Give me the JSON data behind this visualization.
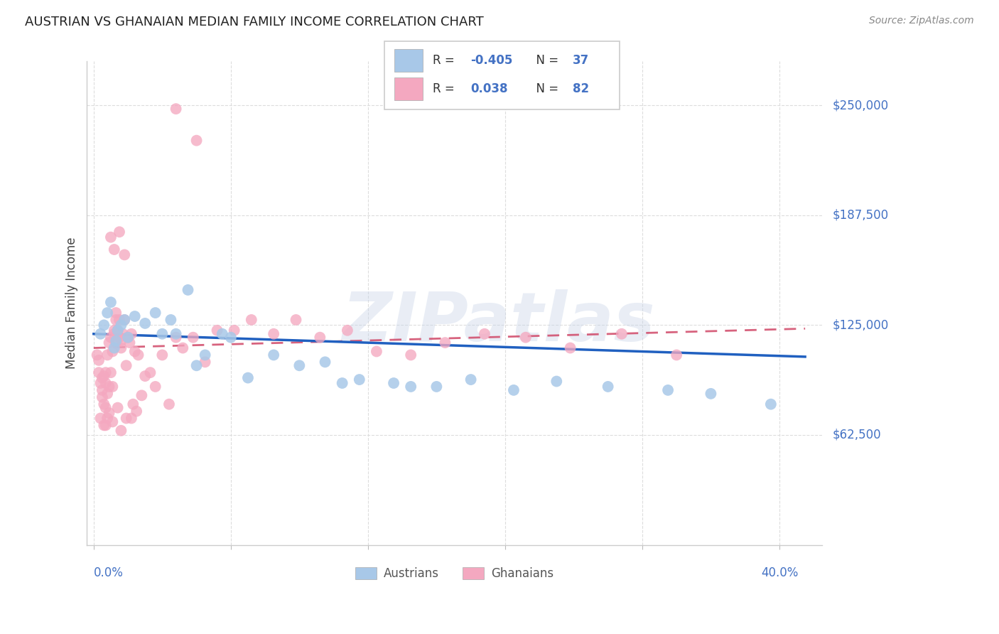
{
  "title": "AUSTRIAN VS GHANAIAN MEDIAN FAMILY INCOME CORRELATION CHART",
  "source": "Source: ZipAtlas.com",
  "ylabel": "Median Family Income",
  "ytick_labels": [
    "$62,500",
    "$125,000",
    "$187,500",
    "$250,000"
  ],
  "ytick_values": [
    62500,
    125000,
    187500,
    250000
  ],
  "ymin": 0,
  "ymax": 275000,
  "xmin": -0.004,
  "xmax": 0.425,
  "watermark": "ZIPatlas",
  "legend_r_aus": "-0.405",
  "legend_n_aus": "37",
  "legend_r_gha": "0.038",
  "legend_n_gha": "82",
  "color_austrians": "#A8C8E8",
  "color_ghanaians": "#F4A8C0",
  "color_line_austrians": "#2060C0",
  "color_line_ghanaians": "#D04868",
  "color_blue_text": "#4472C4",
  "color_black_text": "#333333",
  "color_title": "#222222",
  "color_source": "#888888",
  "color_ylabel": "#444444",
  "color_grid": "#DDDDDD",
  "aus_line_x": [
    0.0,
    0.415
  ],
  "aus_line_y": [
    120000,
    107000
  ],
  "gha_line_x": [
    0.0,
    0.415
  ],
  "gha_line_y": [
    112000,
    123000
  ],
  "aus_x": [
    0.004,
    0.006,
    0.008,
    0.01,
    0.012,
    0.014,
    0.016,
    0.018,
    0.02,
    0.024,
    0.03,
    0.036,
    0.045,
    0.055,
    0.065,
    0.075,
    0.09,
    0.105,
    0.12,
    0.135,
    0.155,
    0.175,
    0.2,
    0.22,
    0.245,
    0.27,
    0.3,
    0.335,
    0.36,
    0.395,
    0.013,
    0.04,
    0.06,
    0.145,
    0.08,
    0.048,
    0.185
  ],
  "aus_y": [
    120000,
    125000,
    132000,
    138000,
    112000,
    122000,
    125000,
    128000,
    118000,
    130000,
    126000,
    132000,
    128000,
    145000,
    108000,
    120000,
    95000,
    108000,
    102000,
    104000,
    94000,
    92000,
    90000,
    94000,
    88000,
    93000,
    90000,
    88000,
    86000,
    80000,
    116000,
    120000,
    102000,
    92000,
    118000,
    120000,
    90000
  ],
  "gha_x": [
    0.002,
    0.003,
    0.003,
    0.004,
    0.005,
    0.005,
    0.005,
    0.006,
    0.006,
    0.007,
    0.007,
    0.007,
    0.008,
    0.008,
    0.009,
    0.009,
    0.01,
    0.01,
    0.011,
    0.011,
    0.012,
    0.012,
    0.013,
    0.013,
    0.013,
    0.014,
    0.014,
    0.015,
    0.015,
    0.016,
    0.016,
    0.017,
    0.018,
    0.019,
    0.02,
    0.021,
    0.022,
    0.024,
    0.026,
    0.028,
    0.03,
    0.033,
    0.036,
    0.04,
    0.044,
    0.048,
    0.052,
    0.058,
    0.065,
    0.072,
    0.082,
    0.092,
    0.105,
    0.118,
    0.132,
    0.148,
    0.165,
    0.185,
    0.205,
    0.228,
    0.252,
    0.278,
    0.308,
    0.34,
    0.048,
    0.06,
    0.01,
    0.012,
    0.015,
    0.018,
    0.022,
    0.025,
    0.008,
    0.006,
    0.004,
    0.007,
    0.009,
    0.011,
    0.014,
    0.016,
    0.019,
    0.023
  ],
  "gha_y": [
    108000,
    98000,
    105000,
    92000,
    88000,
    95000,
    84000,
    96000,
    80000,
    92000,
    78000,
    98000,
    86000,
    108000,
    90000,
    115000,
    98000,
    118000,
    110000,
    90000,
    122000,
    120000,
    115000,
    128000,
    132000,
    122000,
    120000,
    128000,
    118000,
    112000,
    116000,
    120000,
    128000,
    102000,
    118000,
    115000,
    120000,
    110000,
    108000,
    85000,
    96000,
    98000,
    90000,
    108000,
    80000,
    118000,
    112000,
    118000,
    104000,
    122000,
    122000,
    128000,
    120000,
    128000,
    118000,
    122000,
    110000,
    108000,
    115000,
    120000,
    118000,
    112000,
    120000,
    108000,
    248000,
    230000,
    175000,
    168000,
    178000,
    165000,
    72000,
    76000,
    72000,
    68000,
    72000,
    68000,
    75000,
    70000,
    78000,
    65000,
    72000,
    80000
  ]
}
